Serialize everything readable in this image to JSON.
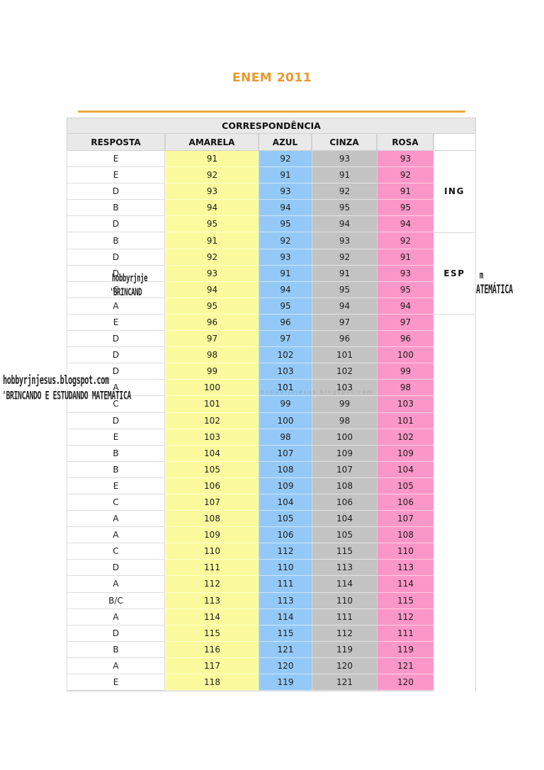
{
  "page": {
    "title": "ENEM 2011"
  },
  "table": {
    "title": "CORRESPONDÊNCIA",
    "columns": [
      "RESPOSTA",
      "AMARELA",
      "AZUL",
      "CINZA",
      "ROSA"
    ],
    "language_groups": [
      {
        "label": "ING",
        "row_span": "rows 1-5"
      },
      {
        "label": "ESP",
        "row_span": "rows 6-10"
      }
    ],
    "rows": [
      [
        "E",
        "91",
        "92",
        "93",
        "93"
      ],
      [
        "E",
        "92",
        "91",
        "91",
        "92"
      ],
      [
        "D",
        "93",
        "93",
        "92",
        "91"
      ],
      [
        "B",
        "94",
        "94",
        "95",
        "95"
      ],
      [
        "D",
        "95",
        "95",
        "94",
        "94"
      ],
      [
        "B",
        "91",
        "92",
        "93",
        "92"
      ],
      [
        "D",
        "92",
        "93",
        "92",
        "91"
      ],
      [
        "D",
        "93",
        "91",
        "91",
        "93"
      ],
      [
        "C",
        "94",
        "94",
        "95",
        "95"
      ],
      [
        "A",
        "95",
        "95",
        "94",
        "94"
      ],
      [
        "E",
        "96",
        "96",
        "97",
        "97"
      ],
      [
        "D",
        "97",
        "97",
        "96",
        "96"
      ],
      [
        "D",
        "98",
        "102",
        "101",
        "100"
      ],
      [
        "D",
        "99",
        "103",
        "102",
        "99"
      ],
      [
        "A",
        "100",
        "101",
        "103",
        "98"
      ],
      [
        "C",
        "101",
        "99",
        "99",
        "103"
      ],
      [
        "D",
        "102",
        "100",
        "98",
        "101"
      ],
      [
        "E",
        "103",
        "98",
        "100",
        "102"
      ],
      [
        "B",
        "104",
        "107",
        "109",
        "109"
      ],
      [
        "B",
        "105",
        "108",
        "107",
        "104"
      ],
      [
        "E",
        "106",
        "109",
        "108",
        "105"
      ],
      [
        "C",
        "107",
        "104",
        "106",
        "106"
      ],
      [
        "A",
        "108",
        "105",
        "104",
        "107"
      ],
      [
        "A",
        "109",
        "106",
        "105",
        "108"
      ],
      [
        "C",
        "110",
        "112",
        "115",
        "110"
      ],
      [
        "D",
        "111",
        "110",
        "113",
        "113"
      ],
      [
        "A",
        "112",
        "111",
        "114",
        "114"
      ],
      [
        "B/C",
        "113",
        "113",
        "110",
        "115"
      ],
      [
        "A",
        "114",
        "114",
        "111",
        "112"
      ],
      [
        "D",
        "115",
        "115",
        "112",
        "111"
      ],
      [
        "B",
        "116",
        "121",
        "119",
        "119"
      ],
      [
        "A",
        "117",
        "120",
        "120",
        "121"
      ],
      [
        "E",
        "118",
        "119",
        "121",
        "120"
      ]
    ]
  },
  "watermarks": {
    "left_line1": "hobbyrjnjesus.blogspot.com",
    "left_line2": "'BRINCANDO E ESTUDANDO MATEMÁTICA",
    "mid_fragment1": "hobbyrjnje",
    "mid_fragment2": "'BRINCAND",
    "right_fragment1": "m",
    "right_fragment2": "ATEMÁTICA",
    "faint_row_text": "hobbyrjnjesus.blogspot.com"
  },
  "colors": {
    "accent_orange": "#E8992B",
    "rule_orange": "#E9A63B",
    "header_bg": "#E9E9E9",
    "amarela": "#FBFB9D",
    "azul": "#94C9F7",
    "cinza": "#C3C3C3",
    "rosa": "#FB97C8"
  }
}
